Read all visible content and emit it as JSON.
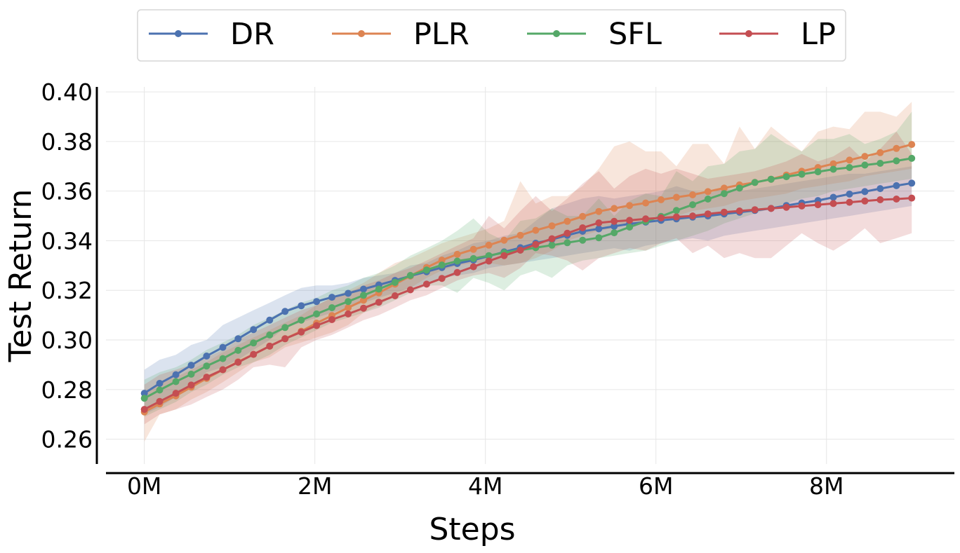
{
  "chart_data": {
    "type": "line",
    "title": "",
    "xlabel": "Steps",
    "ylabel": "Test Return",
    "xlim": [
      -0.45,
      9.5
    ],
    "ylim": [
      0.25,
      0.402
    ],
    "xticks": [
      0,
      2,
      4,
      6,
      8
    ],
    "xtick_labels": [
      "0M",
      "2M",
      "4M",
      "6M",
      "8M"
    ],
    "yticks": [
      0.26,
      0.28,
      0.3,
      0.32,
      0.34,
      0.36,
      0.38,
      0.4
    ],
    "ytick_labels": [
      "0.26",
      "0.28",
      "0.30",
      "0.32",
      "0.34",
      "0.36",
      "0.38",
      "0.40"
    ],
    "grid": true,
    "legend_position": "top-center",
    "x": [
      0.0,
      0.18,
      0.37,
      0.55,
      0.73,
      0.92,
      1.1,
      1.28,
      1.47,
      1.65,
      1.84,
      2.02,
      2.2,
      2.39,
      2.57,
      2.75,
      2.94,
      3.12,
      3.31,
      3.49,
      3.67,
      3.86,
      4.04,
      4.22,
      4.41,
      4.59,
      4.78,
      4.96,
      5.14,
      5.33,
      5.51,
      5.69,
      5.88,
      6.06,
      6.24,
      6.43,
      6.61,
      6.8,
      6.98,
      7.16,
      7.35,
      7.53,
      7.71,
      7.9,
      8.08,
      8.27,
      8.45,
      8.63,
      8.82,
      9.0
    ],
    "series": [
      {
        "name": "DR",
        "color": "#4c72b0",
        "values": [
          0.2785,
          0.2825,
          0.286,
          0.2898,
          0.2935,
          0.297,
          0.3005,
          0.3042,
          0.308,
          0.3115,
          0.3138,
          0.3155,
          0.3172,
          0.3188,
          0.3205,
          0.3222,
          0.324,
          0.3258,
          0.3275,
          0.3292,
          0.3308,
          0.3322,
          0.3338,
          0.3355,
          0.3372,
          0.339,
          0.3405,
          0.3422,
          0.3438,
          0.3448,
          0.3458,
          0.3468,
          0.3475,
          0.3482,
          0.3488,
          0.3495,
          0.35,
          0.3508,
          0.3515,
          0.3522,
          0.353,
          0.3542,
          0.3552,
          0.3562,
          0.3575,
          0.3588,
          0.3598,
          0.361,
          0.3622,
          0.3632
        ],
        "upper": [
          0.288,
          0.292,
          0.294,
          0.298,
          0.3,
          0.306,
          0.309,
          0.312,
          0.315,
          0.318,
          0.321,
          0.322,
          0.322,
          0.323,
          0.325,
          0.326,
          0.327,
          0.33,
          0.331,
          0.334,
          0.336,
          0.339,
          0.34,
          0.342,
          0.343,
          0.348,
          0.353,
          0.355,
          0.357,
          0.358,
          0.357,
          0.358,
          0.359,
          0.36,
          0.362,
          0.36,
          0.359,
          0.361,
          0.36,
          0.361,
          0.362,
          0.363,
          0.364,
          0.365,
          0.366,
          0.367,
          0.367,
          0.368,
          0.369,
          0.37
        ],
        "lower": [
          0.27,
          0.273,
          0.277,
          0.281,
          0.287,
          0.289,
          0.292,
          0.296,
          0.3,
          0.305,
          0.307,
          0.309,
          0.311,
          0.313,
          0.315,
          0.317,
          0.319,
          0.321,
          0.323,
          0.325,
          0.326,
          0.327,
          0.329,
          0.33,
          0.331,
          0.332,
          0.333,
          0.334,
          0.335,
          0.336,
          0.337,
          0.336,
          0.338,
          0.339,
          0.34,
          0.341,
          0.34,
          0.342,
          0.343,
          0.344,
          0.345,
          0.346,
          0.347,
          0.348,
          0.349,
          0.35,
          0.351,
          0.352,
          0.353,
          0.354
        ]
      },
      {
        "name": "PLR",
        "color": "#dd8452",
        "values": [
          0.271,
          0.2742,
          0.2775,
          0.281,
          0.2845,
          0.288,
          0.2912,
          0.2942,
          0.2975,
          0.3005,
          0.3035,
          0.3068,
          0.3098,
          0.313,
          0.316,
          0.319,
          0.3225,
          0.3258,
          0.3292,
          0.3322,
          0.3345,
          0.3365,
          0.3382,
          0.3402,
          0.3422,
          0.3442,
          0.346,
          0.3478,
          0.3498,
          0.3518,
          0.353,
          0.3542,
          0.3552,
          0.3565,
          0.3575,
          0.3585,
          0.3598,
          0.3612,
          0.3625,
          0.3635,
          0.3648,
          0.3665,
          0.368,
          0.3695,
          0.371,
          0.3725,
          0.374,
          0.3755,
          0.3772,
          0.3788
        ],
        "upper": [
          0.279,
          0.283,
          0.285,
          0.288,
          0.291,
          0.295,
          0.298,
          0.301,
          0.304,
          0.307,
          0.31,
          0.314,
          0.317,
          0.32,
          0.323,
          0.327,
          0.331,
          0.333,
          0.336,
          0.339,
          0.341,
          0.343,
          0.345,
          0.348,
          0.364,
          0.355,
          0.358,
          0.358,
          0.362,
          0.369,
          0.378,
          0.38,
          0.376,
          0.376,
          0.37,
          0.379,
          0.379,
          0.371,
          0.386,
          0.377,
          0.386,
          0.381,
          0.376,
          0.384,
          0.386,
          0.385,
          0.392,
          0.392,
          0.39,
          0.396
        ],
        "lower": [
          0.259,
          0.27,
          0.272,
          0.276,
          0.279,
          0.283,
          0.287,
          0.291,
          0.293,
          0.297,
          0.299,
          0.301,
          0.303,
          0.306,
          0.311,
          0.314,
          0.318,
          0.321,
          0.325,
          0.328,
          0.33,
          0.331,
          0.331,
          0.33,
          0.331,
          0.333,
          0.336,
          0.34,
          0.342,
          0.344,
          0.345,
          0.347,
          0.348,
          0.349,
          0.35,
          0.352,
          0.353,
          0.354,
          0.356,
          0.357,
          0.358,
          0.359,
          0.361,
          0.362,
          0.363,
          0.364,
          0.366,
          0.367,
          0.368,
          0.369
        ]
      },
      {
        "name": "SFL",
        "color": "#55a868",
        "values": [
          0.2765,
          0.2798,
          0.2832,
          0.2862,
          0.2895,
          0.2925,
          0.2958,
          0.2988,
          0.302,
          0.305,
          0.308,
          0.3105,
          0.313,
          0.3155,
          0.318,
          0.3205,
          0.3232,
          0.326,
          0.3282,
          0.3302,
          0.3318,
          0.3328,
          0.334,
          0.3352,
          0.3362,
          0.3372,
          0.3382,
          0.3392,
          0.3402,
          0.3412,
          0.3432,
          0.3455,
          0.3478,
          0.3498,
          0.3522,
          0.3545,
          0.3568,
          0.359,
          0.3612,
          0.3635,
          0.3648,
          0.3658,
          0.3668,
          0.3678,
          0.3688,
          0.3695,
          0.3705,
          0.3712,
          0.3722,
          0.3732
        ],
        "upper": [
          0.284,
          0.287,
          0.289,
          0.292,
          0.296,
          0.299,
          0.302,
          0.306,
          0.309,
          0.312,
          0.315,
          0.317,
          0.32,
          0.322,
          0.325,
          0.327,
          0.33,
          0.334,
          0.337,
          0.34,
          0.344,
          0.349,
          0.343,
          0.34,
          0.348,
          0.349,
          0.353,
          0.35,
          0.35,
          0.357,
          0.35,
          0.356,
          0.359,
          0.358,
          0.368,
          0.364,
          0.37,
          0.371,
          0.376,
          0.377,
          0.383,
          0.379,
          0.376,
          0.381,
          0.381,
          0.383,
          0.379,
          0.381,
          0.384,
          0.392
        ],
        "lower": [
          0.269,
          0.272,
          0.275,
          0.279,
          0.282,
          0.286,
          0.289,
          0.291,
          0.294,
          0.298,
          0.301,
          0.304,
          0.307,
          0.309,
          0.311,
          0.313,
          0.316,
          0.319,
          0.322,
          0.322,
          0.319,
          0.325,
          0.323,
          0.32,
          0.326,
          0.328,
          0.325,
          0.33,
          0.332,
          0.333,
          0.334,
          0.335,
          0.336,
          0.338,
          0.34,
          0.342,
          0.344,
          0.347,
          0.349,
          0.351,
          0.353,
          0.355,
          0.357,
          0.358,
          0.36,
          0.361,
          0.362,
          0.363,
          0.364,
          0.365
        ]
      },
      {
        "name": "LP",
        "color": "#c44e52",
        "values": [
          0.272,
          0.2752,
          0.2785,
          0.2818,
          0.285,
          0.288,
          0.291,
          0.2942,
          0.2975,
          0.3005,
          0.3032,
          0.3058,
          0.3082,
          0.3105,
          0.3128,
          0.3152,
          0.3178,
          0.3202,
          0.3225,
          0.3248,
          0.3272,
          0.3295,
          0.3318,
          0.334,
          0.3362,
          0.3385,
          0.3408,
          0.343,
          0.3452,
          0.3472,
          0.3478,
          0.3482,
          0.3488,
          0.3492,
          0.3496,
          0.35,
          0.3508,
          0.3515,
          0.352,
          0.3525,
          0.353,
          0.3535,
          0.354,
          0.3545,
          0.355,
          0.3555,
          0.356,
          0.3565,
          0.3568,
          0.3572
        ],
        "upper": [
          0.282,
          0.286,
          0.288,
          0.29,
          0.293,
          0.296,
          0.3,
          0.303,
          0.306,
          0.309,
          0.312,
          0.314,
          0.317,
          0.319,
          0.322,
          0.324,
          0.327,
          0.329,
          0.332,
          0.335,
          0.338,
          0.341,
          0.35,
          0.345,
          0.352,
          0.358,
          0.352,
          0.357,
          0.363,
          0.368,
          0.361,
          0.366,
          0.369,
          0.367,
          0.369,
          0.367,
          0.365,
          0.366,
          0.367,
          0.368,
          0.37,
          0.372,
          0.375,
          0.372,
          0.374,
          0.378,
          0.372,
          0.377,
          0.384,
          0.375
        ],
        "lower": [
          0.266,
          0.27,
          0.272,
          0.274,
          0.277,
          0.28,
          0.284,
          0.289,
          0.29,
          0.289,
          0.297,
          0.3,
          0.302,
          0.305,
          0.308,
          0.31,
          0.313,
          0.316,
          0.318,
          0.321,
          0.324,
          0.326,
          0.327,
          0.325,
          0.329,
          0.335,
          0.334,
          0.332,
          0.328,
          0.333,
          0.335,
          0.337,
          0.336,
          0.339,
          0.341,
          0.335,
          0.338,
          0.333,
          0.335,
          0.333,
          0.333,
          0.338,
          0.343,
          0.339,
          0.336,
          0.34,
          0.345,
          0.339,
          0.341,
          0.343
        ]
      }
    ]
  }
}
